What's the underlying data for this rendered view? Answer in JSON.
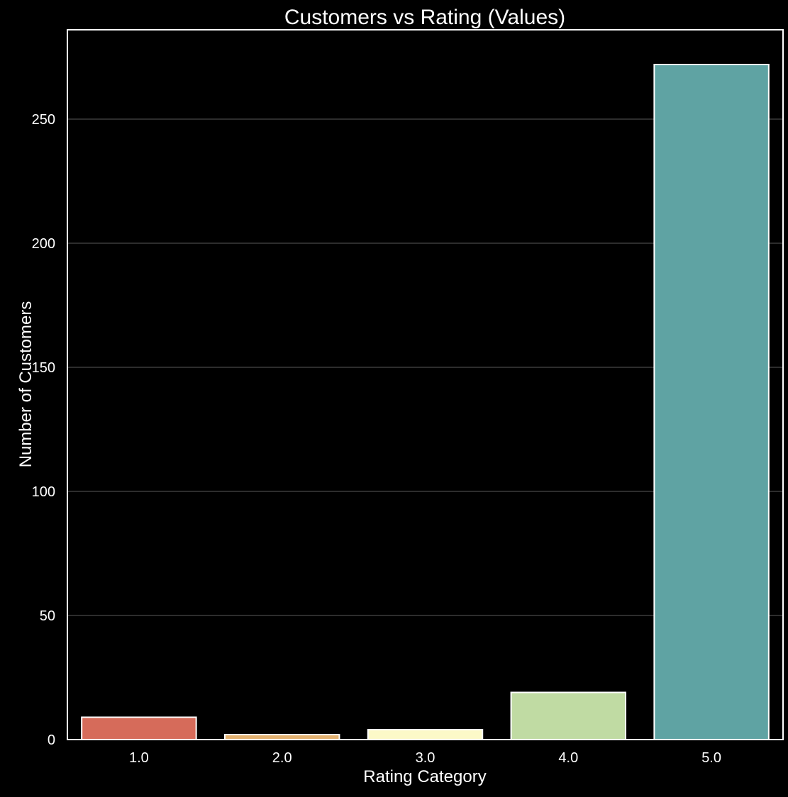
{
  "chart_data": {
    "type": "bar",
    "title": "Customers vs Rating (Values)",
    "xlabel": "Rating Category",
    "ylabel": "Number of Customers",
    "categories": [
      "1.0",
      "2.0",
      "3.0",
      "4.0",
      "5.0"
    ],
    "values": [
      9,
      2,
      4,
      19,
      272
    ],
    "colors": [
      "#d66b5a",
      "#e2b06f",
      "#fcf9c8",
      "#c0dba3",
      "#5fa3a3"
    ],
    "ylim": [
      0,
      286
    ],
    "yticks": [
      0,
      50,
      100,
      150,
      200,
      250
    ],
    "grid": true,
    "theme": {
      "background": "#000000",
      "text": "#ffffff",
      "grid": "#5a5a5a",
      "bar_edge": "#ffffff"
    }
  }
}
